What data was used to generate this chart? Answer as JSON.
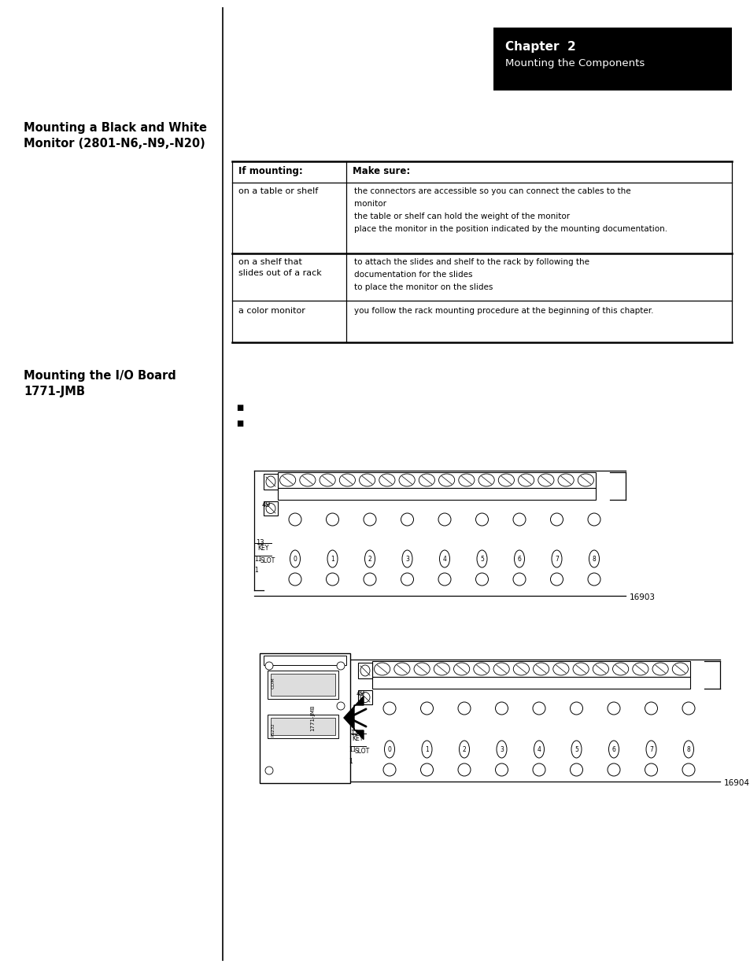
{
  "page_bg": "#ffffff",
  "fig_w": 9.54,
  "fig_h": 12.35,
  "dpi": 100,
  "chapter_title": "Chapter  2",
  "chapter_subtitle": "Mounting the Components",
  "section1_line1": "Mounting a Black and White",
  "section1_line2": "Monitor (2801-N6,-N9,-N20)",
  "section2_line1": "Mounting the I/O Board",
  "section2_line2": "1771-JMB",
  "label_16903": "16903",
  "label_16904": "16904"
}
